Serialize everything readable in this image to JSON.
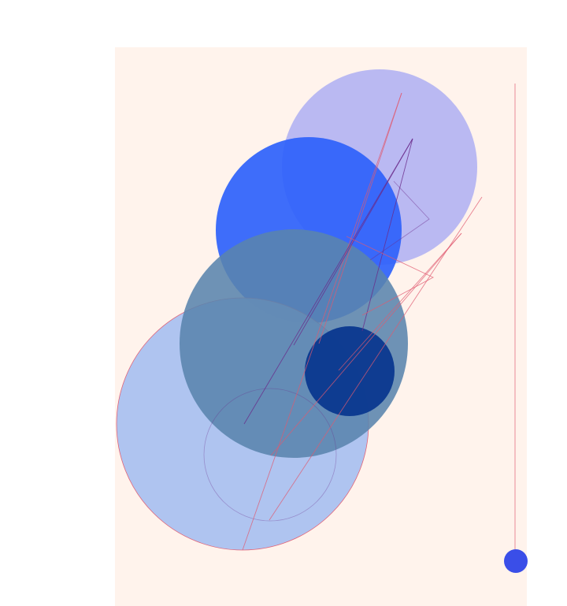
{
  "artwork": {
    "style": "generative geometric composition",
    "colors": {
      "page_background": "#ffffff",
      "canvas_background": "#fff3ec",
      "lavender_circle": "#b4b4f2",
      "royal_blue_circle": "#2f62fb",
      "slate_blue_circle": "#5a84ad",
      "periwinkle_circle": "#a9c1f1",
      "navy_circle": "#0a388f",
      "small_blue_dot": "#3a4ee8",
      "thin_red_line": "#e05a70",
      "thin_purple_line": "#6a2a8a"
    },
    "icons": [
      "circle",
      "line",
      "polyline"
    ]
  }
}
